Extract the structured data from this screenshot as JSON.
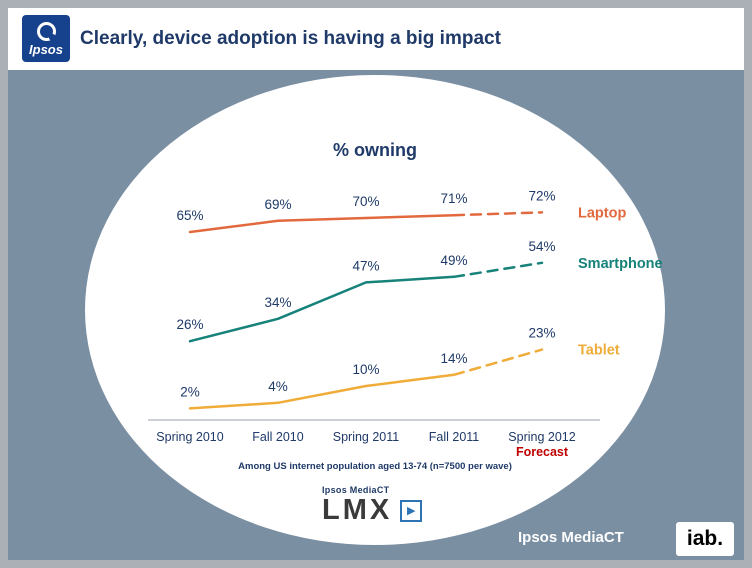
{
  "header": {
    "logo_text": "Ipsos",
    "title": "Clearly, device adoption is having a big impact"
  },
  "chart_data": {
    "type": "line",
    "title": "% owning",
    "categories": [
      "Spring 2010",
      "Fall 2010",
      "Spring 2011",
      "Fall 2011",
      "Spring 2012"
    ],
    "series": [
      {
        "name": "Laptop",
        "color": "#E2693E",
        "values": [
          65,
          69,
          70,
          71,
          72
        ]
      },
      {
        "name": "Smartphone",
        "color": "#16827A",
        "values": [
          26,
          34,
          47,
          49,
          54
        ]
      },
      {
        "name": "Tablet",
        "color": "#F0AC38",
        "values": [
          2,
          4,
          10,
          14,
          23
        ]
      }
    ],
    "value_suffix": "%",
    "last_segment_style": "dashed",
    "forecast_label": "Forecast",
    "forecast_category": "Spring 2012",
    "footnote": "Among US internet population aged 13-74 (n=7500 per wave)",
    "ylim": [
      0,
      80
    ],
    "grid": false,
    "legend_position": "right-of-last-point",
    "label_color": "#1F3A68",
    "forecast_color": "#C00000"
  },
  "footer": {
    "lmx_brand_small": "Ipsos MediaCT",
    "lmx_brand_big": "LMX",
    "brand_right": "Ipsos MediaCT",
    "iab_logo": "iab."
  }
}
